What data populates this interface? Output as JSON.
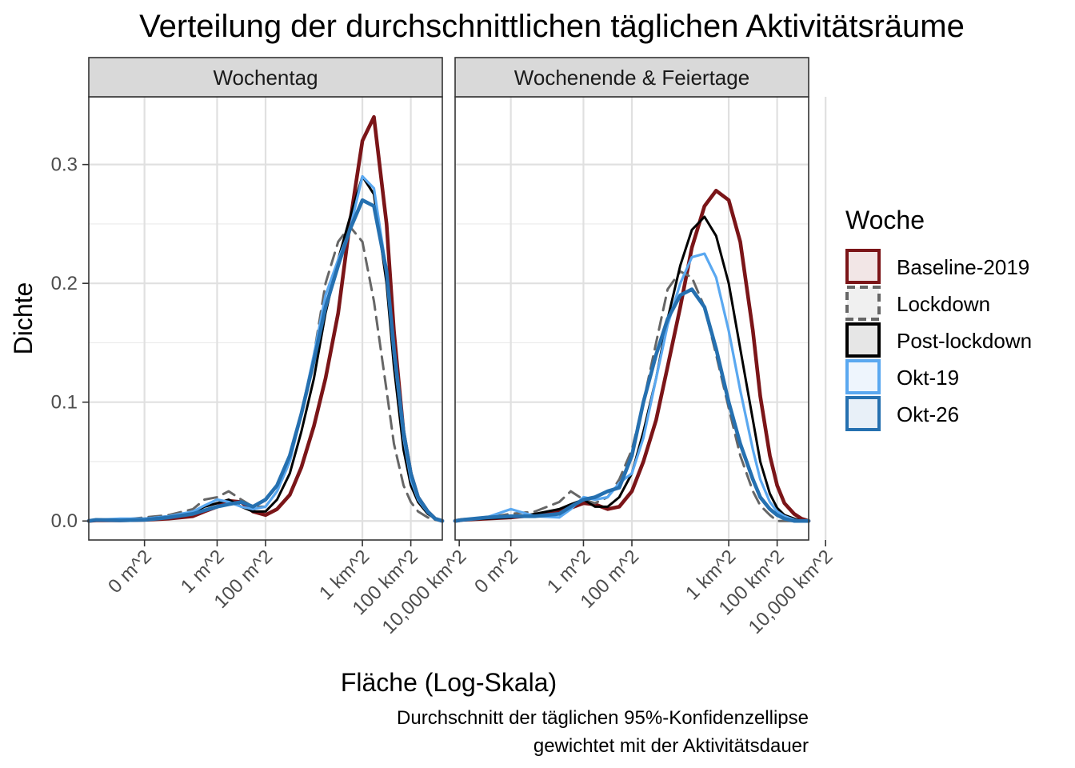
{
  "chart_data": {
    "type": "line",
    "title": "Verteilung der durchschnittlichen täglichen Aktivitätsräume",
    "xlabel": "Fläche (Log-Skala)",
    "ylabel": "Dichte",
    "caption_lines": [
      "Durchschnitt der täglichen 95%-Konfidenzellipse",
      "gewichtet mit der Aktivitätsdauer"
    ],
    "x_scale": "log10",
    "x_unit": "m^2",
    "xlim": [
      5e-06,
      2000000000
    ],
    "ylim": [
      -0.016,
      0.357
    ],
    "x_ticks": [
      {
        "value": 0.001,
        "label": "0 m^2"
      },
      {
        "value": 1,
        "label": "1 m^2"
      },
      {
        "value": 100,
        "label": "100 m^2"
      },
      {
        "value": 1000000,
        "label": "1 km^2"
      },
      {
        "value": 100000000,
        "label": "100 km^2"
      },
      {
        "value": 10000000000,
        "label": "10,000 km^2"
      }
    ],
    "y_ticks": [
      {
        "value": 0.0,
        "label": "0.0"
      },
      {
        "value": 0.1,
        "label": "0.1"
      },
      {
        "value": 0.2,
        "label": "0.2"
      },
      {
        "value": 0.3,
        "label": "0.3"
      }
    ],
    "grid": true,
    "legend": {
      "title": "Woche",
      "position": "right",
      "entries": [
        {
          "name": "Baseline-2019",
          "color": "#7b1518",
          "fill": "#f2e6e6",
          "dash": false
        },
        {
          "name": "Lockdown",
          "color": "#666666",
          "fill": "#f0f0f0",
          "dash": true
        },
        {
          "name": "Post-lockdown",
          "color": "#000000",
          "fill": "#e6e6e6",
          "dash": false
        },
        {
          "name": "Okt-19",
          "color": "#5aa8f0",
          "fill": "#eef5fd",
          "dash": false
        },
        {
          "name": "Okt-26",
          "color": "#2570b0",
          "fill": "#e8f0f8",
          "dash": false
        }
      ]
    },
    "panels": [
      {
        "strip": "Wochentag",
        "series": [
          {
            "name": "Baseline-2019",
            "x": [
              5e-06,
              1e-05,
              0.0001,
              0.001,
              0.01,
              0.1,
              0.3,
              1,
              3,
              10,
              30,
              100,
              300,
              1000,
              3000,
              10000,
              30000,
              100000,
              300000,
              1000000,
              3000000,
              10000000,
              20000000,
              50000000,
              100000000,
              200000000,
              500000000,
              1000000000,
              2000000000
            ],
            "y": [
              0.0,
              0.0005,
              0.0005,
              0.001,
              0.002,
              0.004,
              0.008,
              0.012,
              0.017,
              0.016,
              0.008,
              0.005,
              0.01,
              0.022,
              0.045,
              0.08,
              0.12,
              0.175,
              0.25,
              0.32,
              0.34,
              0.25,
              0.16,
              0.075,
              0.04,
              0.02,
              0.008,
              0.002,
              0.0
            ]
          },
          {
            "name": "Lockdown",
            "x": [
              5e-06,
              1e-05,
              0.0001,
              0.001,
              0.01,
              0.1,
              0.3,
              1,
              3,
              10,
              30,
              100,
              300,
              1000,
              3000,
              10000,
              30000,
              100000,
              300000,
              1000000,
              3000000,
              10000000,
              20000000,
              50000000,
              100000000,
              200000000,
              500000000,
              1000000000,
              2000000000
            ],
            "y": [
              0.0,
              0.0005,
              0.001,
              0.003,
              0.005,
              0.01,
              0.018,
              0.02,
              0.025,
              0.018,
              0.012,
              0.012,
              0.025,
              0.05,
              0.09,
              0.14,
              0.2,
              0.235,
              0.248,
              0.235,
              0.185,
              0.11,
              0.065,
              0.03,
              0.016,
              0.008,
              0.003,
              0.001,
              0.0
            ]
          },
          {
            "name": "Post-lockdown",
            "x": [
              5e-06,
              1e-05,
              0.0001,
              0.001,
              0.01,
              0.1,
              0.3,
              1,
              3,
              10,
              30,
              100,
              300,
              1000,
              3000,
              10000,
              30000,
              100000,
              300000,
              1000000,
              3000000,
              10000000,
              20000000,
              50000000,
              100000000,
              200000000,
              500000000,
              1000000000,
              2000000000
            ],
            "y": [
              0.0,
              0.0005,
              0.001,
              0.002,
              0.004,
              0.007,
              0.012,
              0.015,
              0.018,
              0.012,
              0.008,
              0.008,
              0.018,
              0.04,
              0.075,
              0.12,
              0.175,
              0.22,
              0.255,
              0.29,
              0.275,
              0.2,
              0.13,
              0.06,
              0.03,
              0.016,
              0.006,
              0.002,
              0.0
            ]
          },
          {
            "name": "Okt-19",
            "x": [
              5e-06,
              1e-05,
              0.0001,
              0.001,
              0.01,
              0.1,
              0.3,
              1,
              3,
              10,
              30,
              100,
              300,
              1000,
              3000,
              10000,
              30000,
              100000,
              300000,
              1000000,
              3000000,
              10000000,
              20000000,
              50000000,
              100000000,
              200000000,
              500000000,
              1000000000,
              2000000000
            ],
            "y": [
              0.0,
              0.001,
              0.002,
              0.002,
              0.004,
              0.008,
              0.013,
              0.018,
              0.016,
              0.012,
              0.01,
              0.012,
              0.025,
              0.05,
              0.09,
              0.14,
              0.19,
              0.22,
              0.245,
              0.29,
              0.28,
              0.21,
              0.14,
              0.07,
              0.035,
              0.018,
              0.007,
              0.002,
              0.0
            ]
          },
          {
            "name": "Okt-26",
            "x": [
              5e-06,
              1e-05,
              0.0001,
              0.001,
              0.01,
              0.1,
              0.3,
              1,
              3,
              10,
              30,
              100,
              300,
              1000,
              3000,
              10000,
              30000,
              100000,
              300000,
              1000000,
              3000000,
              10000000,
              20000000,
              50000000,
              100000000,
              200000000,
              500000000,
              1000000000,
              2000000000
            ],
            "y": [
              0.0,
              0.001,
              0.0005,
              0.001,
              0.003,
              0.006,
              0.009,
              0.012,
              0.014,
              0.016,
              0.012,
              0.018,
              0.03,
              0.055,
              0.09,
              0.135,
              0.18,
              0.215,
              0.245,
              0.27,
              0.265,
              0.21,
              0.145,
              0.075,
              0.04,
              0.02,
              0.008,
              0.002,
              0.0
            ]
          }
        ]
      },
      {
        "strip": "Wochenende & Feiertage",
        "series": [
          {
            "name": "Baseline-2019",
            "x": [
              5e-06,
              1e-05,
              0.0001,
              0.001,
              0.01,
              0.1,
              0.3,
              1,
              3,
              10,
              30,
              100,
              300,
              1000,
              3000,
              10000,
              30000,
              100000,
              300000,
              1000000,
              3000000,
              10000000,
              20000000,
              50000000,
              100000000,
              200000000,
              500000000,
              1000000000,
              2000000000
            ],
            "y": [
              0.0,
              0.001,
              0.002,
              0.003,
              0.005,
              0.008,
              0.011,
              0.015,
              0.014,
              0.01,
              0.012,
              0.025,
              0.05,
              0.085,
              0.13,
              0.18,
              0.23,
              0.265,
              0.278,
              0.27,
              0.235,
              0.16,
              0.105,
              0.055,
              0.03,
              0.015,
              0.006,
              0.002,
              0.0
            ]
          },
          {
            "name": "Lockdown",
            "x": [
              5e-06,
              1e-05,
              0.0001,
              0.001,
              0.01,
              0.1,
              0.3,
              1,
              3,
              10,
              30,
              100,
              300,
              1000,
              3000,
              10000,
              30000,
              100000,
              300000,
              1000000,
              3000000,
              10000000,
              20000000,
              50000000,
              100000000,
              200000000,
              500000000,
              1000000000,
              2000000000
            ],
            "y": [
              0.0,
              0.001,
              0.003,
              0.006,
              0.008,
              0.016,
              0.025,
              0.018,
              0.015,
              0.02,
              0.035,
              0.06,
              0.1,
              0.15,
              0.195,
              0.21,
              0.205,
              0.18,
              0.14,
              0.095,
              0.055,
              0.025,
              0.013,
              0.005,
              0.0,
              0.0,
              0.0,
              0.0,
              0.0
            ]
          },
          {
            "name": "Post-lockdown",
            "x": [
              5e-06,
              1e-05,
              0.0001,
              0.001,
              0.01,
              0.1,
              0.3,
              1,
              3,
              10,
              30,
              100,
              300,
              1000,
              3000,
              10000,
              30000,
              100000,
              300000,
              1000000,
              3000000,
              10000000,
              20000000,
              50000000,
              100000000,
              200000000,
              500000000,
              1000000000,
              2000000000
            ],
            "y": [
              0.0,
              0.001,
              0.002,
              0.003,
              0.006,
              0.01,
              0.014,
              0.018,
              0.012,
              0.012,
              0.02,
              0.04,
              0.075,
              0.12,
              0.17,
              0.215,
              0.245,
              0.256,
              0.24,
              0.2,
              0.145,
              0.085,
              0.05,
              0.023,
              0.011,
              0.005,
              0.002,
              0.0,
              0.0
            ]
          },
          {
            "name": "Okt-19",
            "x": [
              5e-06,
              1e-05,
              0.0001,
              0.001,
              0.01,
              0.1,
              0.3,
              1,
              3,
              10,
              30,
              100,
              300,
              1000,
              3000,
              10000,
              30000,
              100000,
              300000,
              1000000,
              3000000,
              10000000,
              20000000,
              50000000,
              100000000,
              200000000,
              500000000,
              1000000000,
              2000000000
            ],
            "y": [
              0.0,
              0.001,
              0.003,
              0.01,
              0.004,
              0.003,
              0.01,
              0.02,
              0.018,
              0.02,
              0.032,
              0.04,
              0.07,
              0.12,
              0.165,
              0.2,
              0.222,
              0.225,
              0.205,
              0.16,
              0.11,
              0.06,
              0.035,
              0.016,
              0.008,
              0.004,
              0.001,
              0.0,
              0.0
            ]
          },
          {
            "name": "Okt-26",
            "x": [
              5e-06,
              1e-05,
              0.0001,
              0.001,
              0.01,
              0.1,
              0.3,
              1,
              3,
              10,
              30,
              100,
              300,
              1000,
              3000,
              10000,
              30000,
              100000,
              300000,
              1000000,
              3000000,
              10000000,
              20000000,
              50000000,
              100000000,
              200000000,
              500000000,
              1000000000,
              2000000000
            ],
            "y": [
              0.0,
              0.001,
              0.003,
              0.004,
              0.004,
              0.006,
              0.012,
              0.018,
              0.02,
              0.025,
              0.028,
              0.055,
              0.1,
              0.14,
              0.17,
              0.19,
              0.195,
              0.18,
              0.145,
              0.1,
              0.065,
              0.035,
              0.02,
              0.01,
              0.005,
              0.002,
              0.0,
              0.0,
              0.0
            ]
          }
        ]
      }
    ]
  }
}
